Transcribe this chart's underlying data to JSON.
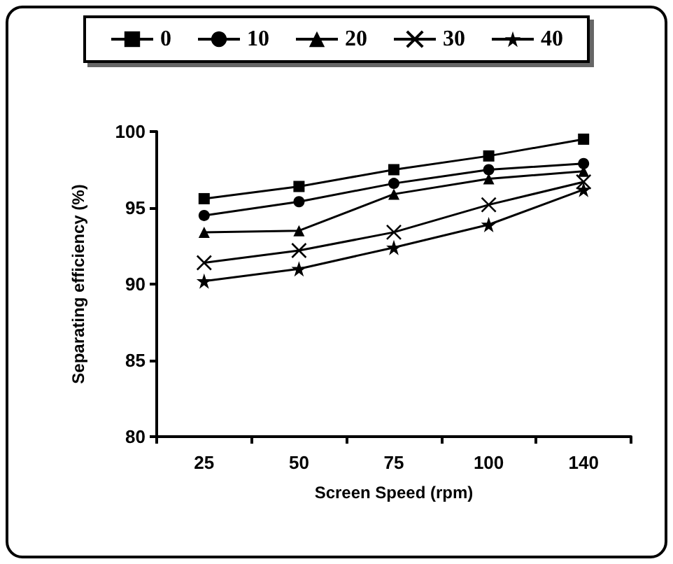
{
  "chart_data": {
    "type": "line",
    "xlabel": "Screen Speed (rpm)",
    "ylabel": "Separating efficiency (%)",
    "categories": [
      "25",
      "50",
      "75",
      "100",
      "140"
    ],
    "series": [
      {
        "name": "0",
        "color": "#000000",
        "marker": "square",
        "values": [
          95.6,
          96.4,
          97.5,
          98.4,
          99.5
        ]
      },
      {
        "name": "10",
        "color": "#000000",
        "marker": "circle",
        "values": [
          94.5,
          95.4,
          96.6,
          97.5,
          97.9
        ]
      },
      {
        "name": "20",
        "color": "#000000",
        "marker": "triangle",
        "values": [
          93.4,
          93.5,
          95.9,
          96.9,
          97.4
        ]
      },
      {
        "name": "30",
        "color": "#000000",
        "marker": "cross",
        "values": [
          91.4,
          92.2,
          93.4,
          95.2,
          96.7
        ]
      },
      {
        "name": "40",
        "color": "#000000",
        "marker": "star",
        "values": [
          90.2,
          91.0,
          92.4,
          93.9,
          96.2
        ]
      }
    ],
    "ylim": [
      80,
      100
    ],
    "yticks": [
      80,
      85,
      90,
      95,
      100
    ],
    "grid": false,
    "legend": "top",
    "line_style": "solid"
  }
}
